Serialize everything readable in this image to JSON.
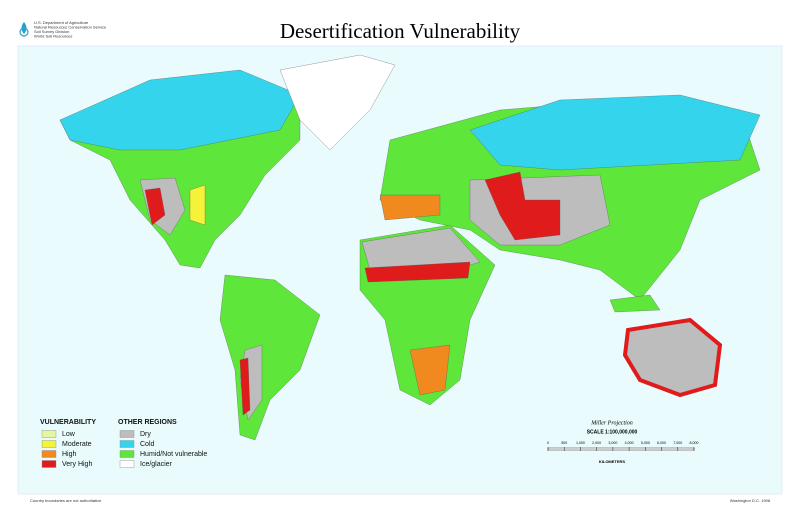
{
  "header": {
    "agency": [
      "U.S. Department of Agriculture",
      "Natural Resources Conservation Service",
      "Soil Survey Division",
      "World Soil Resources"
    ],
    "title": "Desertification Vulnerability"
  },
  "legend": {
    "vulnerability": {
      "heading": "VULNERABILITY",
      "items": [
        {
          "label": "Low",
          "color": "#e6f5a0"
        },
        {
          "label": "Moderate",
          "color": "#f5f23a"
        },
        {
          "label": "High",
          "color": "#f08a1e"
        },
        {
          "label": "Very High",
          "color": "#e01b1b"
        }
      ]
    },
    "other": {
      "heading": "OTHER REGIONS",
      "items": [
        {
          "label": "Dry",
          "color": "#bdbdbd"
        },
        {
          "label": "Cold",
          "color": "#34d5ec"
        },
        {
          "label": "Humid/Not vulnerable",
          "color": "#5ee63a"
        },
        {
          "label": "Ice/glacier",
          "color": "#ffffff"
        }
      ]
    }
  },
  "scale": {
    "projection": "Miller Projection",
    "ratio": "SCALE 1:100,000,000",
    "ticks": [
      "0",
      "500",
      "1,000",
      "2,000",
      "3,000",
      "4,000",
      "5,000",
      "6,000",
      "7,000",
      "8,000"
    ],
    "unit": "KILOMETERS"
  },
  "footer": {
    "note": "Country boundaries are not authoritative",
    "place": "Washington D.C. 1998"
  }
}
